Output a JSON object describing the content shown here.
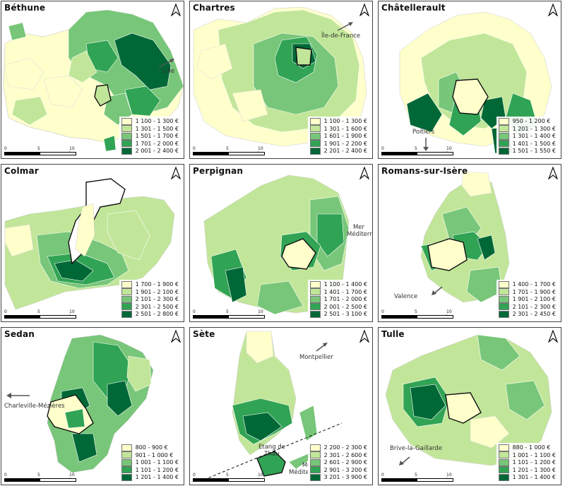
{
  "palette": [
    "#ffffcc",
    "#c2e699",
    "#78c679",
    "#31a354",
    "#006837"
  ],
  "panels": [
    {
      "city": "Béthune",
      "legend": [
        "1 100 - 1 300 €",
        "1 301 - 1 500 €",
        "1 501 - 1 700 €",
        "1 701 - 2 000 €",
        "2 001 - 2 400 €"
      ],
      "scale": [
        "0",
        "5",
        "10 km"
      ],
      "directions": [
        "Lille"
      ],
      "seas": []
    },
    {
      "city": "Chartres",
      "legend": [
        "1 100 - 1 300 €",
        "1 301 - 1 600 €",
        "1 601 - 1 900 €",
        "1 901 - 2 200 €",
        "2 201 - 2 400 €"
      ],
      "scale": [
        "0",
        "5",
        "10 km"
      ],
      "directions": [
        "Île-de-France"
      ],
      "seas": []
    },
    {
      "city": "Châtellerault",
      "legend": [
        "950 - 1 200 €",
        "1 201 - 1 300 €",
        "1 301 - 1 400 €",
        "1 401 - 1 500 €",
        "1 501 - 1 550 €"
      ],
      "scale": [
        "0",
        "5",
        "10 km"
      ],
      "directions": [
        "Poitiers"
      ],
      "seas": []
    },
    {
      "city": "Colmar",
      "legend": [
        "1 700 - 1 900 €",
        "1 901 - 2 100 €",
        "2 101 - 2 300 €",
        "2 301 - 2 500 €",
        "2 501 - 2 800 €"
      ],
      "scale": [
        "0",
        "5",
        "10 km"
      ],
      "directions": [],
      "seas": []
    },
    {
      "city": "Perpignan",
      "legend": [
        "1 100 - 1 400 €",
        "1 401 - 1 700 €",
        "1 701 - 2 000 €",
        "2 001 - 2 500 €",
        "2 501 - 3 100 €"
      ],
      "scale": [
        "0",
        "5",
        "10 km"
      ],
      "directions": [],
      "seas": [
        "Mer Méditerranée"
      ]
    },
    {
      "city": "Romans-sur-Isère",
      "legend": [
        "1 400 - 1 700 €",
        "1 701 - 1 900 €",
        "1 901 - 2 100 €",
        "2 101 - 2 300 €",
        "2 301 - 2 450 €"
      ],
      "scale": [
        "0",
        "5",
        "10 km"
      ],
      "directions": [
        "Valence"
      ],
      "seas": []
    },
    {
      "city": "Sedan",
      "legend": [
        "800 - 900 €",
        "901 - 1 000 €",
        "1 001 - 1 100 €",
        "1 101 - 1 200 €",
        "1 201 - 1 400 €"
      ],
      "scale": [
        "0",
        "5",
        "10 km"
      ],
      "directions": [
        "Charleville-Mézières"
      ],
      "seas": []
    },
    {
      "city": "Sète",
      "legend": [
        "2 200 - 2 300 €",
        "2 301 - 2 600 €",
        "2 601 - 2 900 €",
        "2 901 - 3 200 €",
        "3 201 - 3 900 €"
      ],
      "scale": [
        "0",
        "5",
        "10 km"
      ],
      "directions": [
        "Montpellier"
      ],
      "seas": [
        "Etang de Thau",
        "Mer Méditerranée"
      ]
    },
    {
      "city": "Tulle",
      "legend": [
        "880 - 1 000 €",
        "1 001 - 1 100 €",
        "1 101 - 1 200 €",
        "1 201 - 1 300 €",
        "1 301 - 1 400 €"
      ],
      "scale": [
        "0",
        "5",
        "10 km"
      ],
      "directions": [
        "Brive-la-Gaillarde"
      ],
      "seas": []
    }
  ]
}
